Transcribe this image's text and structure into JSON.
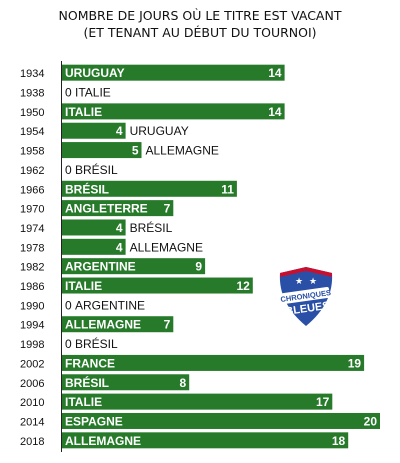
{
  "chart_data": {
    "type": "bar",
    "orientation": "horizontal",
    "title": "NOMBRE DE JOURS OÙ LE TITRE EST VACANT",
    "subtitle": "(ET TENANT AU DÉBUT DU TOURNOI)",
    "bar_color": "#267a2a",
    "bar_text_color": "#ffffff",
    "outside_text_color": "#111111",
    "xlim": [
      0,
      20
    ],
    "grid": false,
    "legend": "none",
    "rows": [
      {
        "year": "1934",
        "value": 14,
        "team": "URUGUAY"
      },
      {
        "year": "1938",
        "value": 0,
        "team": "ITALIE"
      },
      {
        "year": "1950",
        "value": 14,
        "team": "ITALIE"
      },
      {
        "year": "1954",
        "value": 4,
        "team": "URUGUAY"
      },
      {
        "year": "1958",
        "value": 5,
        "team": "ALLEMAGNE"
      },
      {
        "year": "1962",
        "value": 0,
        "team": "BRÉSIL"
      },
      {
        "year": "1966",
        "value": 11,
        "team": "BRÉSIL"
      },
      {
        "year": "1970",
        "value": 7,
        "team": "ANGLETERRE"
      },
      {
        "year": "1974",
        "value": 4,
        "team": "BRÉSIL"
      },
      {
        "year": "1978",
        "value": 4,
        "team": "ALLEMAGNE"
      },
      {
        "year": "1982",
        "value": 9,
        "team": "ARGENTINE"
      },
      {
        "year": "1986",
        "value": 12,
        "team": "ITALIE"
      },
      {
        "year": "1990",
        "value": 0,
        "team": "ARGENTINE"
      },
      {
        "year": "1994",
        "value": 7,
        "team": "ALLEMAGNE"
      },
      {
        "year": "1998",
        "value": 0,
        "team": "BRÉSIL"
      },
      {
        "year": "2002",
        "value": 19,
        "team": "FRANCE"
      },
      {
        "year": "2006",
        "value": 8,
        "team": "BRÉSIL"
      },
      {
        "year": "2010",
        "value": 17,
        "team": "ITALIE"
      },
      {
        "year": "2014",
        "value": 20,
        "team": "ESPAGNE"
      },
      {
        "year": "2018",
        "value": 18,
        "team": "ALLEMAGNE"
      }
    ]
  },
  "logo": {
    "text_line1": "CHRONIQUES",
    "text_line2": "BLEUES",
    "shield_color": "#2a4fa6",
    "stripe_color": "#c8102e"
  }
}
